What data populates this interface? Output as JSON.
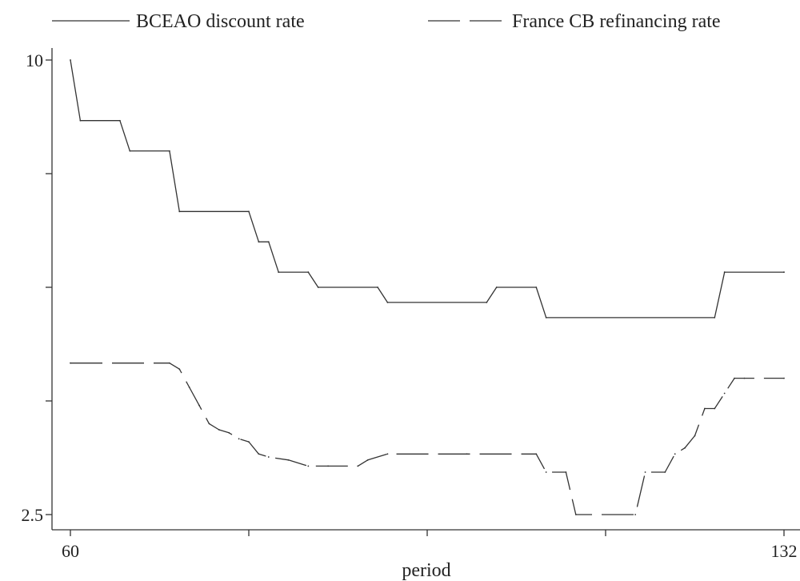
{
  "chart_data": {
    "type": "line",
    "xlabel": "period",
    "xlim": [
      60,
      132
    ],
    "ylim": [
      2.5,
      10
    ],
    "x_tick_labels": [
      "60",
      "",
      "",
      "",
      "132"
    ],
    "x_ticks": [
      60,
      78,
      96,
      114,
      132
    ],
    "y_tick_labels": [
      "2.5",
      "",
      "",
      "",
      "10"
    ],
    "y_ticks": [
      2.5,
      4.375,
      6.25,
      8.125,
      10
    ],
    "legend_position": "top",
    "series": [
      {
        "name": "BCEAO discount rate",
        "style": "solid",
        "color": "#333333",
        "points": [
          [
            60,
            10.0
          ],
          [
            61,
            9.0
          ],
          [
            65,
            9.0
          ],
          [
            66,
            8.5
          ],
          [
            70,
            8.5
          ],
          [
            71,
            7.5
          ],
          [
            78,
            7.5
          ],
          [
            79,
            7.0
          ],
          [
            80,
            7.0
          ],
          [
            81,
            6.5
          ],
          [
            84,
            6.5
          ],
          [
            85,
            6.25
          ],
          [
            91,
            6.25
          ],
          [
            92,
            6.0
          ],
          [
            102,
            6.0
          ],
          [
            103,
            6.25
          ],
          [
            107,
            6.25
          ],
          [
            108,
            5.75
          ],
          [
            125,
            5.75
          ],
          [
            126,
            6.5
          ],
          [
            132,
            6.5
          ]
        ]
      },
      {
        "name": "France CB refinancing rate",
        "style": "dashed",
        "color": "#333333",
        "points": [
          [
            60,
            5.0
          ],
          [
            70,
            5.0
          ],
          [
            71,
            4.9
          ],
          [
            72,
            4.6
          ],
          [
            73,
            4.3
          ],
          [
            74,
            4.0
          ],
          [
            75,
            3.9
          ],
          [
            76,
            3.85
          ],
          [
            77,
            3.75
          ],
          [
            78,
            3.7
          ],
          [
            79,
            3.5
          ],
          [
            80,
            3.45
          ],
          [
            82,
            3.4
          ],
          [
            84,
            3.3
          ],
          [
            86,
            3.3
          ],
          [
            89,
            3.3
          ],
          [
            90,
            3.4
          ],
          [
            92,
            3.5
          ],
          [
            100,
            3.5
          ],
          [
            107,
            3.5
          ],
          [
            108,
            3.2
          ],
          [
            110,
            3.2
          ],
          [
            111,
            2.5
          ],
          [
            117,
            2.5
          ],
          [
            118,
            3.2
          ],
          [
            120,
            3.2
          ],
          [
            121,
            3.5
          ],
          [
            122,
            3.6
          ],
          [
            123,
            3.8
          ],
          [
            124,
            4.25
          ],
          [
            125,
            4.25
          ],
          [
            126,
            4.5
          ],
          [
            127,
            4.75
          ],
          [
            128,
            4.75
          ],
          [
            132,
            4.75
          ]
        ]
      }
    ]
  }
}
